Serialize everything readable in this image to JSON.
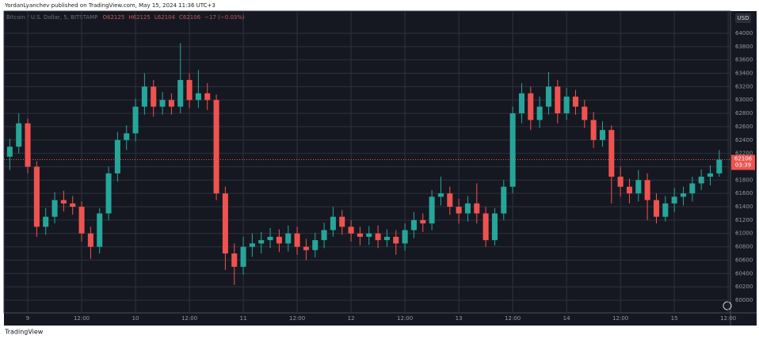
{
  "header": "YordanLyanchev published on TradingView.com, May 15, 2024 11:36 UTC+3",
  "footer": "TradingView",
  "chart_data": {
    "type": "candlestick",
    "title": "Bitcoin / U.S. Dollar, 5, BITSTAMP",
    "ohlc_legend": [
      "O62125",
      "H62125",
      "L62104",
      "C62106",
      "−17 (−0.03%)"
    ],
    "currency": "USD",
    "last_price": 62106,
    "countdown": "03:39",
    "up_color": "#26a69a",
    "down_color": "#ef5350",
    "grid": true,
    "xlim": [
      -5.3,
      156.5
    ],
    "xticks": [
      {
        "value": 0,
        "label": "9"
      },
      {
        "value": 12,
        "label": "12:00"
      },
      {
        "value": 24,
        "label": "10"
      },
      {
        "value": 36,
        "label": "12:00"
      },
      {
        "value": 48,
        "label": "11"
      },
      {
        "value": 60,
        "label": "12:00"
      },
      {
        "value": 72,
        "label": "12"
      },
      {
        "value": 84,
        "label": "12:00"
      },
      {
        "value": 96,
        "label": "13"
      },
      {
        "value": 108,
        "label": "12:00"
      },
      {
        "value": 120,
        "label": "14"
      },
      {
        "value": 132,
        "label": "12:00"
      },
      {
        "value": 144,
        "label": "15"
      },
      {
        "value": 156,
        "label": "12:00"
      }
    ],
    "ylim": [
      59810,
      64320
    ],
    "yticks": [
      60000,
      60200,
      60400,
      60600,
      60800,
      61000,
      61200,
      61400,
      61600,
      61800,
      62000,
      62200,
      62400,
      62600,
      62800,
      63000,
      63200,
      63400,
      63600,
      63800,
      64000
    ],
    "x": [
      -4,
      -2,
      0,
      2,
      4,
      6,
      8,
      10,
      12,
      14,
      16,
      18,
      20,
      22,
      24,
      26,
      28,
      30,
      32,
      34,
      36,
      38,
      40,
      42,
      44,
      46,
      48,
      50,
      52,
      54,
      56,
      58,
      60,
      62,
      64,
      66,
      68,
      70,
      72,
      74,
      76,
      78,
      80,
      82,
      84,
      86,
      88,
      90,
      92,
      94,
      96,
      98,
      100,
      102,
      104,
      106,
      108,
      110,
      112,
      114,
      116,
      118,
      120,
      122,
      124,
      126,
      128,
      130,
      132,
      134,
      136,
      138,
      140,
      142,
      144,
      146,
      148,
      150,
      152,
      154
    ],
    "open": [
      62150,
      62300,
      62650,
      62000,
      61100,
      61250,
      61500,
      61450,
      61400,
      61000,
      60800,
      61300,
      61900,
      62400,
      62500,
      62900,
      63200,
      62900,
      63000,
      62900,
      63300,
      63000,
      63100,
      63000,
      61600,
      60700,
      60500,
      60800,
      60850,
      60900,
      60950,
      60850,
      61000,
      60800,
      60750,
      60900,
      61050,
      61250,
      61100,
      61000,
      60950,
      61000,
      60900,
      60950,
      60850,
      61050,
      61200,
      61150,
      61550,
      61600,
      61400,
      61300,
      61450,
      61300,
      60900,
      61300,
      61700,
      62800,
      63100,
      62700,
      62900,
      63200,
      62800,
      63050,
      62900,
      62700,
      62400,
      62550,
      61850,
      61700,
      61600,
      61800,
      61500,
      61250,
      61450,
      61550,
      61600,
      61750,
      61850,
      61900
    ],
    "high": [
      62420,
      62800,
      62720,
      62080,
      61380,
      61620,
      61640,
      61560,
      61480,
      61100,
      61380,
      62000,
      62520,
      62620,
      63020,
      63400,
      63300,
      63120,
      63100,
      63850,
      63400,
      63450,
      63250,
      63080,
      61700,
      60850,
      60950,
      61000,
      61020,
      61080,
      61060,
      61120,
      61100,
      60920,
      61010,
      61160,
      61400,
      61350,
      61200,
      61100,
      61110,
      61120,
      61060,
      61050,
      61150,
      61320,
      61300,
      61650,
      61850,
      61700,
      61520,
      61560,
      61750,
      61400,
      61380,
      61800,
      62900,
      63250,
      63200,
      63050,
      63420,
      63300,
      63180,
      63150,
      63000,
      62820,
      62680,
      62620,
      62000,
      61820,
      61950,
      61900,
      61600,
      61560,
      61680,
      61700,
      61850,
      61960,
      62020,
      62250
    ],
    "low": [
      61950,
      62200,
      61900,
      60950,
      60980,
      61150,
      61330,
      61280,
      60880,
      60620,
      60700,
      61200,
      61780,
      62250,
      62380,
      62780,
      62750,
      62780,
      62780,
      62800,
      62880,
      62880,
      62850,
      61500,
      60450,
      60230,
      60380,
      60650,
      60700,
      60780,
      60720,
      60730,
      60680,
      60600,
      60640,
      60780,
      60950,
      60980,
      60880,
      60820,
      60830,
      60780,
      60800,
      60680,
      60740,
      60930,
      61020,
      61050,
      61420,
      61280,
      61150,
      61180,
      61150,
      60800,
      60820,
      61200,
      61600,
      62650,
      62550,
      62580,
      62780,
      62650,
      62700,
      62780,
      62580,
      62280,
      62300,
      61450,
      61550,
      61450,
      61480,
      61200,
      61150,
      61180,
      61320,
      61420,
      61480,
      61650,
      61720,
      61850
    ],
    "close": [
      62300,
      62650,
      62000,
      61100,
      61250,
      61500,
      61450,
      61400,
      61000,
      60800,
      61300,
      61900,
      62400,
      62500,
      62900,
      63200,
      62900,
      63000,
      62900,
      63300,
      63000,
      63100,
      63000,
      61600,
      60700,
      60500,
      60800,
      60850,
      60900,
      60950,
      60850,
      61000,
      60800,
      60750,
      60900,
      61050,
      61250,
      61100,
      61000,
      60950,
      61000,
      60900,
      60950,
      60850,
      61050,
      61200,
      61150,
      61550,
      61600,
      61400,
      61300,
      61450,
      61300,
      60900,
      61300,
      61700,
      62800,
      63100,
      62700,
      62900,
      63200,
      62800,
      63050,
      62900,
      62700,
      62400,
      62550,
      61850,
      61700,
      61600,
      61800,
      61500,
      61250,
      61450,
      61550,
      61600,
      61750,
      61850,
      61900,
      62106
    ]
  }
}
